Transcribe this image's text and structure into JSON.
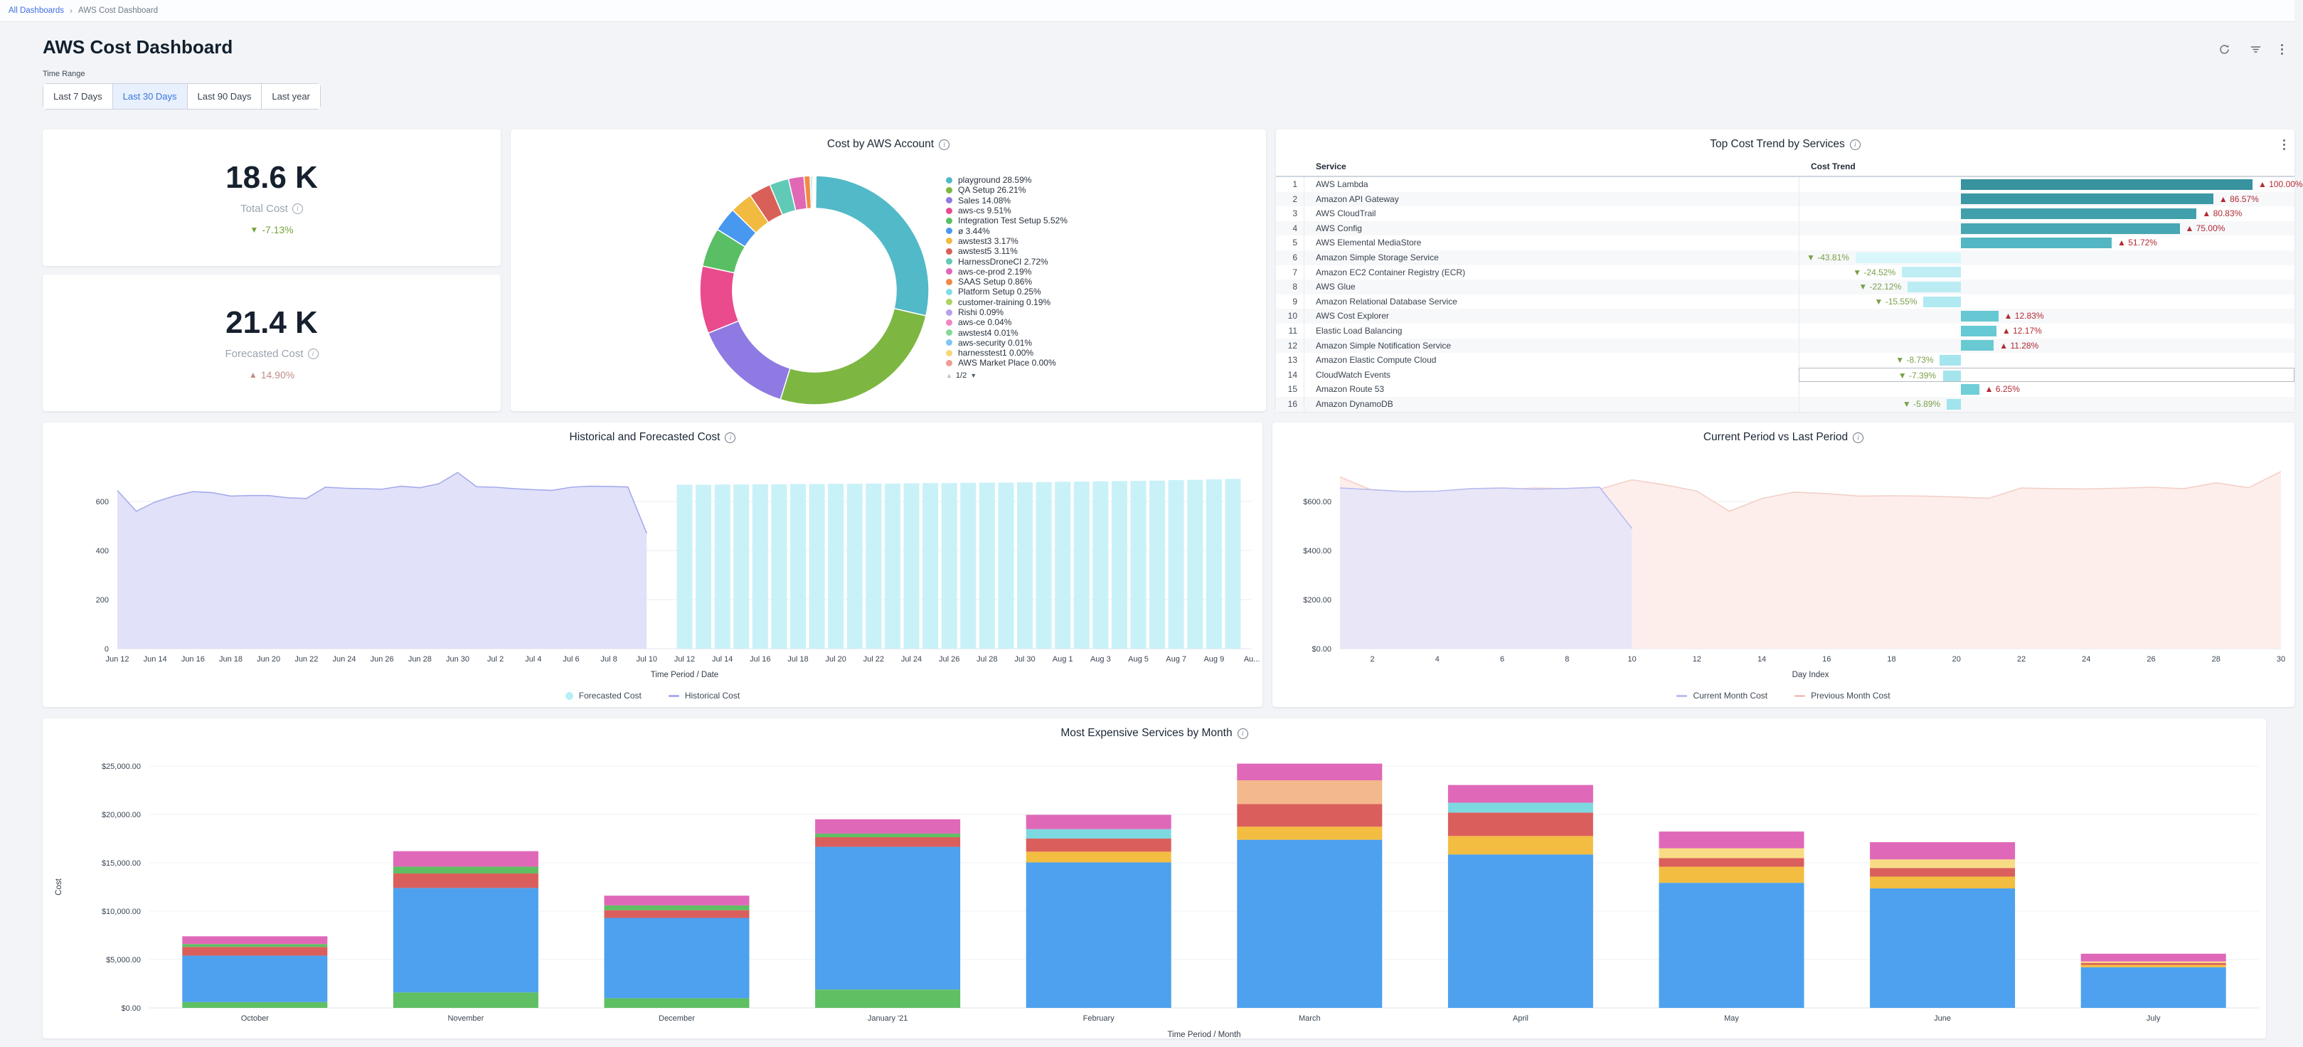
{
  "breadcrumb": {
    "root": "All Dashboards",
    "separator": "›",
    "current": "AWS Cost Dashboard"
  },
  "title": "AWS Cost Dashboard",
  "header_icons": [
    "refresh-icon",
    "filter-icon",
    "kebab-menu-icon"
  ],
  "time_range": {
    "label": "Time Range",
    "options": [
      {
        "label": "Last 7 Days",
        "selected": false
      },
      {
        "label": "Last 30 Days",
        "selected": true
      },
      {
        "label": "Last 90 Days",
        "selected": false
      },
      {
        "label": "Last year",
        "selected": false
      }
    ]
  },
  "kpis": [
    {
      "value": "18.6 K",
      "label": "Total Cost",
      "arrow": "▼",
      "change": "-7.13%",
      "change_color": "#76a23f"
    },
    {
      "value": "21.4 K",
      "label": "Forecasted Cost",
      "arrow": "▲",
      "change": "14.90%",
      "change_color": "#bf8d89"
    }
  ],
  "donut": {
    "title": "Cost by AWS Account",
    "pagination": {
      "page": "1/2",
      "up": "▲",
      "down": "▼"
    },
    "slices": [
      {
        "label": "playground",
        "pct": 28.59,
        "color": "#52b9c8"
      },
      {
        "label": "QA Setup",
        "pct": 26.21,
        "color": "#7db742"
      },
      {
        "label": "Sales",
        "pct": 14.08,
        "color": "#8e7ae2"
      },
      {
        "label": "aws-cs",
        "pct": 9.51,
        "color": "#e94b8d"
      },
      {
        "label": "Integration Test Setup",
        "pct": 5.52,
        "color": "#5abf64"
      },
      {
        "label": "ø",
        "pct": 3.44,
        "color": "#4898f0"
      },
      {
        "label": "awstest3",
        "pct": 3.17,
        "color": "#f1ba40"
      },
      {
        "label": "awstest5",
        "pct": 3.11,
        "color": "#d96058"
      },
      {
        "label": "HarnessDroneCI",
        "pct": 2.72,
        "color": "#60cab6"
      },
      {
        "label": "aws-ce-prod",
        "pct": 2.19,
        "color": "#e168b4"
      },
      {
        "label": "SAAS Setup",
        "pct": 0.86,
        "color": "#f08a45"
      },
      {
        "label": "Platform Setup",
        "pct": 0.25,
        "color": "#81dde5"
      },
      {
        "label": "customer-training",
        "pct": 0.19,
        "color": "#aed161"
      },
      {
        "label": "Rishi",
        "pct": 0.09,
        "color": "#b5a1ea"
      },
      {
        "label": "aws-ce",
        "pct": 0.04,
        "color": "#f286c1"
      },
      {
        "label": "awstest4",
        "pct": 0.01,
        "color": "#85d897"
      },
      {
        "label": "aws-security",
        "pct": 0.01,
        "color": "#81c5f2"
      },
      {
        "label": "harnesstest1",
        "pct": 0.0,
        "color": "#f6d877"
      },
      {
        "label": "AWS Market Place",
        "pct": 0.0,
        "color": "#ed9c94"
      }
    ]
  },
  "services_table": {
    "title": "Top Cost Trend by Services",
    "columns": [
      "Service",
      "Cost Trend"
    ],
    "up_color": "#b22a33",
    "down_color": "#7aa04a",
    "rows": [
      {
        "rank": 1,
        "service": "AWS Lambda",
        "trend_pct": 100.0,
        "trend_label": "100.00%",
        "direction": "up",
        "bar_color": "#38929f",
        "highlight": false
      },
      {
        "rank": 2,
        "service": "Amazon API Gateway",
        "trend_pct": 86.57,
        "trend_label": "86.57%",
        "direction": "up",
        "bar_color": "#3d98a6",
        "highlight": false
      },
      {
        "rank": 3,
        "service": "AWS CloudTrail",
        "trend_pct": 80.83,
        "trend_label": "80.83%",
        "direction": "up",
        "bar_color": "#42a0ad",
        "highlight": false
      },
      {
        "rank": 4,
        "service": "AWS Config",
        "trend_pct": 75.0,
        "trend_label": "75.00%",
        "direction": "up",
        "bar_color": "#47a7b3",
        "highlight": false
      },
      {
        "rank": 5,
        "service": "AWS Elemental MediaStore",
        "trend_pct": 51.72,
        "trend_label": "51.72%",
        "direction": "up",
        "bar_color": "#53b6c2",
        "highlight": false
      },
      {
        "rank": 6,
        "service": "Amazon Simple Storage Service",
        "trend_pct": -43.81,
        "trend_label": "-43.81%",
        "direction": "down",
        "bar_color": "#d9f7fb",
        "highlight": false
      },
      {
        "rank": 7,
        "service": "Amazon EC2 Container Registry (ECR)",
        "trend_pct": -24.52,
        "trend_label": "-24.52%",
        "direction": "down",
        "bar_color": "#bfedf4",
        "highlight": false
      },
      {
        "rank": 8,
        "service": "AWS Glue",
        "trend_pct": -22.12,
        "trend_label": "-22.12%",
        "direction": "down",
        "bar_color": "#bcecf3",
        "highlight": false
      },
      {
        "rank": 9,
        "service": "Amazon Relational Database Service",
        "trend_pct": -15.55,
        "trend_label": "-15.55%",
        "direction": "down",
        "bar_color": "#b0e9f1",
        "highlight": false
      },
      {
        "rank": 10,
        "service": "AWS Cost Explorer",
        "trend_pct": 12.83,
        "trend_label": "12.83%",
        "direction": "up",
        "bar_color": "#66c8d2",
        "highlight": false
      },
      {
        "rank": 11,
        "service": "Elastic Load Balancing",
        "trend_pct": 12.17,
        "trend_label": "12.17%",
        "direction": "up",
        "bar_color": "#67c9d3",
        "highlight": false
      },
      {
        "rank": 12,
        "service": "Amazon Simple Notification Service",
        "trend_pct": 11.28,
        "trend_label": "11.28%",
        "direction": "up",
        "bar_color": "#69cad3",
        "highlight": false
      },
      {
        "rank": 13,
        "service": "Amazon Elastic Compute Cloud",
        "trend_pct": -8.73,
        "trend_label": "-8.73%",
        "direction": "down",
        "bar_color": "#a5e5ee",
        "highlight": false
      },
      {
        "rank": 14,
        "service": "CloudWatch Events",
        "trend_pct": -7.39,
        "trend_label": "-7.39%",
        "direction": "down",
        "bar_color": "#a4e4ed",
        "highlight": true
      },
      {
        "rank": 15,
        "service": "Amazon Route 53",
        "trend_pct": 6.25,
        "trend_label": "6.25%",
        "direction": "up",
        "bar_color": "#70ced7",
        "highlight": false
      },
      {
        "rank": 16,
        "service": "Amazon DynamoDB",
        "trend_pct": -5.89,
        "trend_label": "-5.89%",
        "direction": "down",
        "bar_color": "#a2e4ed",
        "highlight": false
      }
    ]
  },
  "historical_chart": {
    "type": "area+bar",
    "title": "Historical and Forecasted Cost",
    "xlabel": "Time Period / Date",
    "y_ticks": [
      0,
      200,
      400,
      600
    ],
    "x_ticks": [
      [
        0,
        "Jun 12"
      ],
      [
        2,
        "Jun 14"
      ],
      [
        4,
        "Jun 16"
      ],
      [
        6,
        "Jun 18"
      ],
      [
        8,
        "Jun 20"
      ],
      [
        10,
        "Jun 22"
      ],
      [
        12,
        "Jun 24"
      ],
      [
        14,
        "Jun 26"
      ],
      [
        16,
        "Jun 28"
      ],
      [
        18,
        "Jun 30"
      ],
      [
        20,
        "Jul 2"
      ],
      [
        22,
        "Jul 4"
      ],
      [
        24,
        "Jul 6"
      ],
      [
        26,
        "Jul 8"
      ],
      [
        28,
        "Jul 10"
      ],
      [
        30,
        "Jul 12"
      ],
      [
        32,
        "Jul 14"
      ],
      [
        34,
        "Jul 16"
      ],
      [
        36,
        "Jul 18"
      ],
      [
        38,
        "Jul 20"
      ],
      [
        40,
        "Jul 22"
      ],
      [
        42,
        "Jul 24"
      ],
      [
        44,
        "Jul 26"
      ],
      [
        46,
        "Jul 28"
      ],
      [
        48,
        "Jul 30"
      ],
      [
        50,
        "Aug 1"
      ],
      [
        52,
        "Aug 3"
      ],
      [
        54,
        "Aug 5"
      ],
      [
        56,
        "Aug 7"
      ],
      [
        58,
        "Aug 9"
      ],
      [
        60,
        "Au..."
      ]
    ],
    "historical": {
      "name": "Historical Cost",
      "line_color": "#a6abec",
      "fill_color": "#dcddf8",
      "start_day": 0,
      "values": [
        645,
        560,
        598,
        622,
        640,
        636,
        622,
        624,
        624,
        615,
        612,
        658,
        654,
        652,
        650,
        662,
        656,
        672,
        718,
        660,
        658,
        652,
        648,
        645,
        658,
        662,
        661,
        659,
        470
      ]
    },
    "forecast": {
      "name": "Forecasted Cost",
      "color": "#c9f1f8",
      "start_day": 30,
      "values": [
        668,
        668,
        669,
        669,
        670,
        670,
        671,
        671,
        672,
        672,
        673,
        673,
        674,
        675,
        675,
        676,
        677,
        677,
        678,
        679,
        680,
        681,
        682,
        683,
        684,
        685,
        687,
        688,
        690,
        692
      ]
    }
  },
  "compare_chart": {
    "type": "area",
    "title": "Current Period vs Last Period",
    "xlabel": "Day Index",
    "y_ticks": [
      {
        "v": 0,
        "label": "$0.00"
      },
      {
        "v": 200,
        "label": "$200.00"
      },
      {
        "v": 400,
        "label": "$400.00"
      },
      {
        "v": 600,
        "label": "$600.00"
      }
    ],
    "x_ticks": [
      2,
      4,
      6,
      8,
      10,
      12,
      14,
      16,
      18,
      20,
      22,
      24,
      26,
      28,
      30
    ],
    "series": [
      {
        "name": "Previous Month Cost",
        "line_color": "#f3cfc8",
        "fill_color": "#fdeeeb",
        "values": [
          700,
          645,
          632,
          628,
          652,
          648,
          655,
          652,
          650,
          688,
          668,
          642,
          560,
          612,
          638,
          632,
          622,
          623,
          622,
          618,
          613,
          655,
          652,
          651,
          654,
          658,
          652,
          676,
          656,
          722
        ]
      },
      {
        "name": "Current Month Cost",
        "line_color": "#b9bcf0",
        "fill_color": "#e7e5f8",
        "values": [
          655,
          648,
          640,
          642,
          652,
          655,
          650,
          653,
          658,
          490
        ]
      }
    ]
  },
  "monthly_chart": {
    "type": "stacked-bar",
    "title": "Most Expensive Services by Month",
    "xlabel": "Time Period / Month",
    "ylabel": "Cost",
    "y_ticks": [
      {
        "v": 0,
        "label": "$0.00"
      },
      {
        "v": 5000,
        "label": "$5,000.00"
      },
      {
        "v": 10000,
        "label": "$10,000.00"
      },
      {
        "v": 15000,
        "label": "$15,000.00"
      },
      {
        "v": 20000,
        "label": "$20,000.00"
      },
      {
        "v": 25000,
        "label": "$25,000.00"
      }
    ],
    "palette": {
      "blue": "#4da1ee",
      "green": "#5fbf63",
      "red": "#da5f5c",
      "pink": "#e068b8",
      "yellow": "#f3bd41",
      "cream": "#f8dc85",
      "peach": "#f3b88c",
      "cyan": "#7ed8e0"
    },
    "months": [
      {
        "label": "October",
        "segments": [
          [
            "green",
            600
          ],
          [
            "blue",
            4800
          ],
          [
            "red",
            900
          ],
          [
            "green",
            300
          ],
          [
            "pink",
            800
          ]
        ]
      },
      {
        "label": "November",
        "segments": [
          [
            "green",
            1600
          ],
          [
            "blue",
            10800
          ],
          [
            "red",
            1500
          ],
          [
            "green",
            700
          ],
          [
            "pink",
            1600
          ]
        ]
      },
      {
        "label": "December",
        "segments": [
          [
            "green",
            1000
          ],
          [
            "blue",
            8300
          ],
          [
            "red",
            800
          ],
          [
            "green",
            500
          ],
          [
            "pink",
            1000
          ]
        ]
      },
      {
        "label": "January '21",
        "segments": [
          [
            "green",
            1900
          ],
          [
            "blue",
            14750
          ],
          [
            "red",
            1000
          ],
          [
            "green",
            370
          ],
          [
            "pink",
            1480
          ]
        ]
      },
      {
        "label": "February",
        "segments": [
          [
            "blue",
            15040
          ],
          [
            "yellow",
            1110
          ],
          [
            "red",
            1350
          ],
          [
            "cyan",
            980
          ],
          [
            "pink",
            1480
          ]
        ]
      },
      {
        "label": "March",
        "segments": [
          [
            "blue",
            17380
          ],
          [
            "yellow",
            1350
          ],
          [
            "red",
            2340
          ],
          [
            "peach",
            2460
          ],
          [
            "pink",
            1720
          ]
        ]
      },
      {
        "label": "April",
        "segments": [
          [
            "blue",
            15860
          ],
          [
            "yellow",
            1910
          ],
          [
            "red",
            2420
          ],
          [
            "cyan",
            1020
          ],
          [
            "pink",
            1830
          ]
        ]
      },
      {
        "label": "May",
        "segments": [
          [
            "blue",
            12930
          ],
          [
            "yellow",
            1660
          ],
          [
            "red",
            890
          ],
          [
            "cream",
            1020
          ],
          [
            "pink",
            1730
          ]
        ]
      },
      {
        "label": "June",
        "segments": [
          [
            "blue",
            12350
          ],
          [
            "yellow",
            1220
          ],
          [
            "red",
            890
          ],
          [
            "cream",
            890
          ],
          [
            "pink",
            1780
          ]
        ]
      },
      {
        "label": "July",
        "segments": [
          [
            "blue",
            4200
          ],
          [
            "yellow",
            250
          ],
          [
            "red",
            200
          ],
          [
            "cream",
            150
          ],
          [
            "pink",
            800
          ]
        ]
      }
    ]
  }
}
